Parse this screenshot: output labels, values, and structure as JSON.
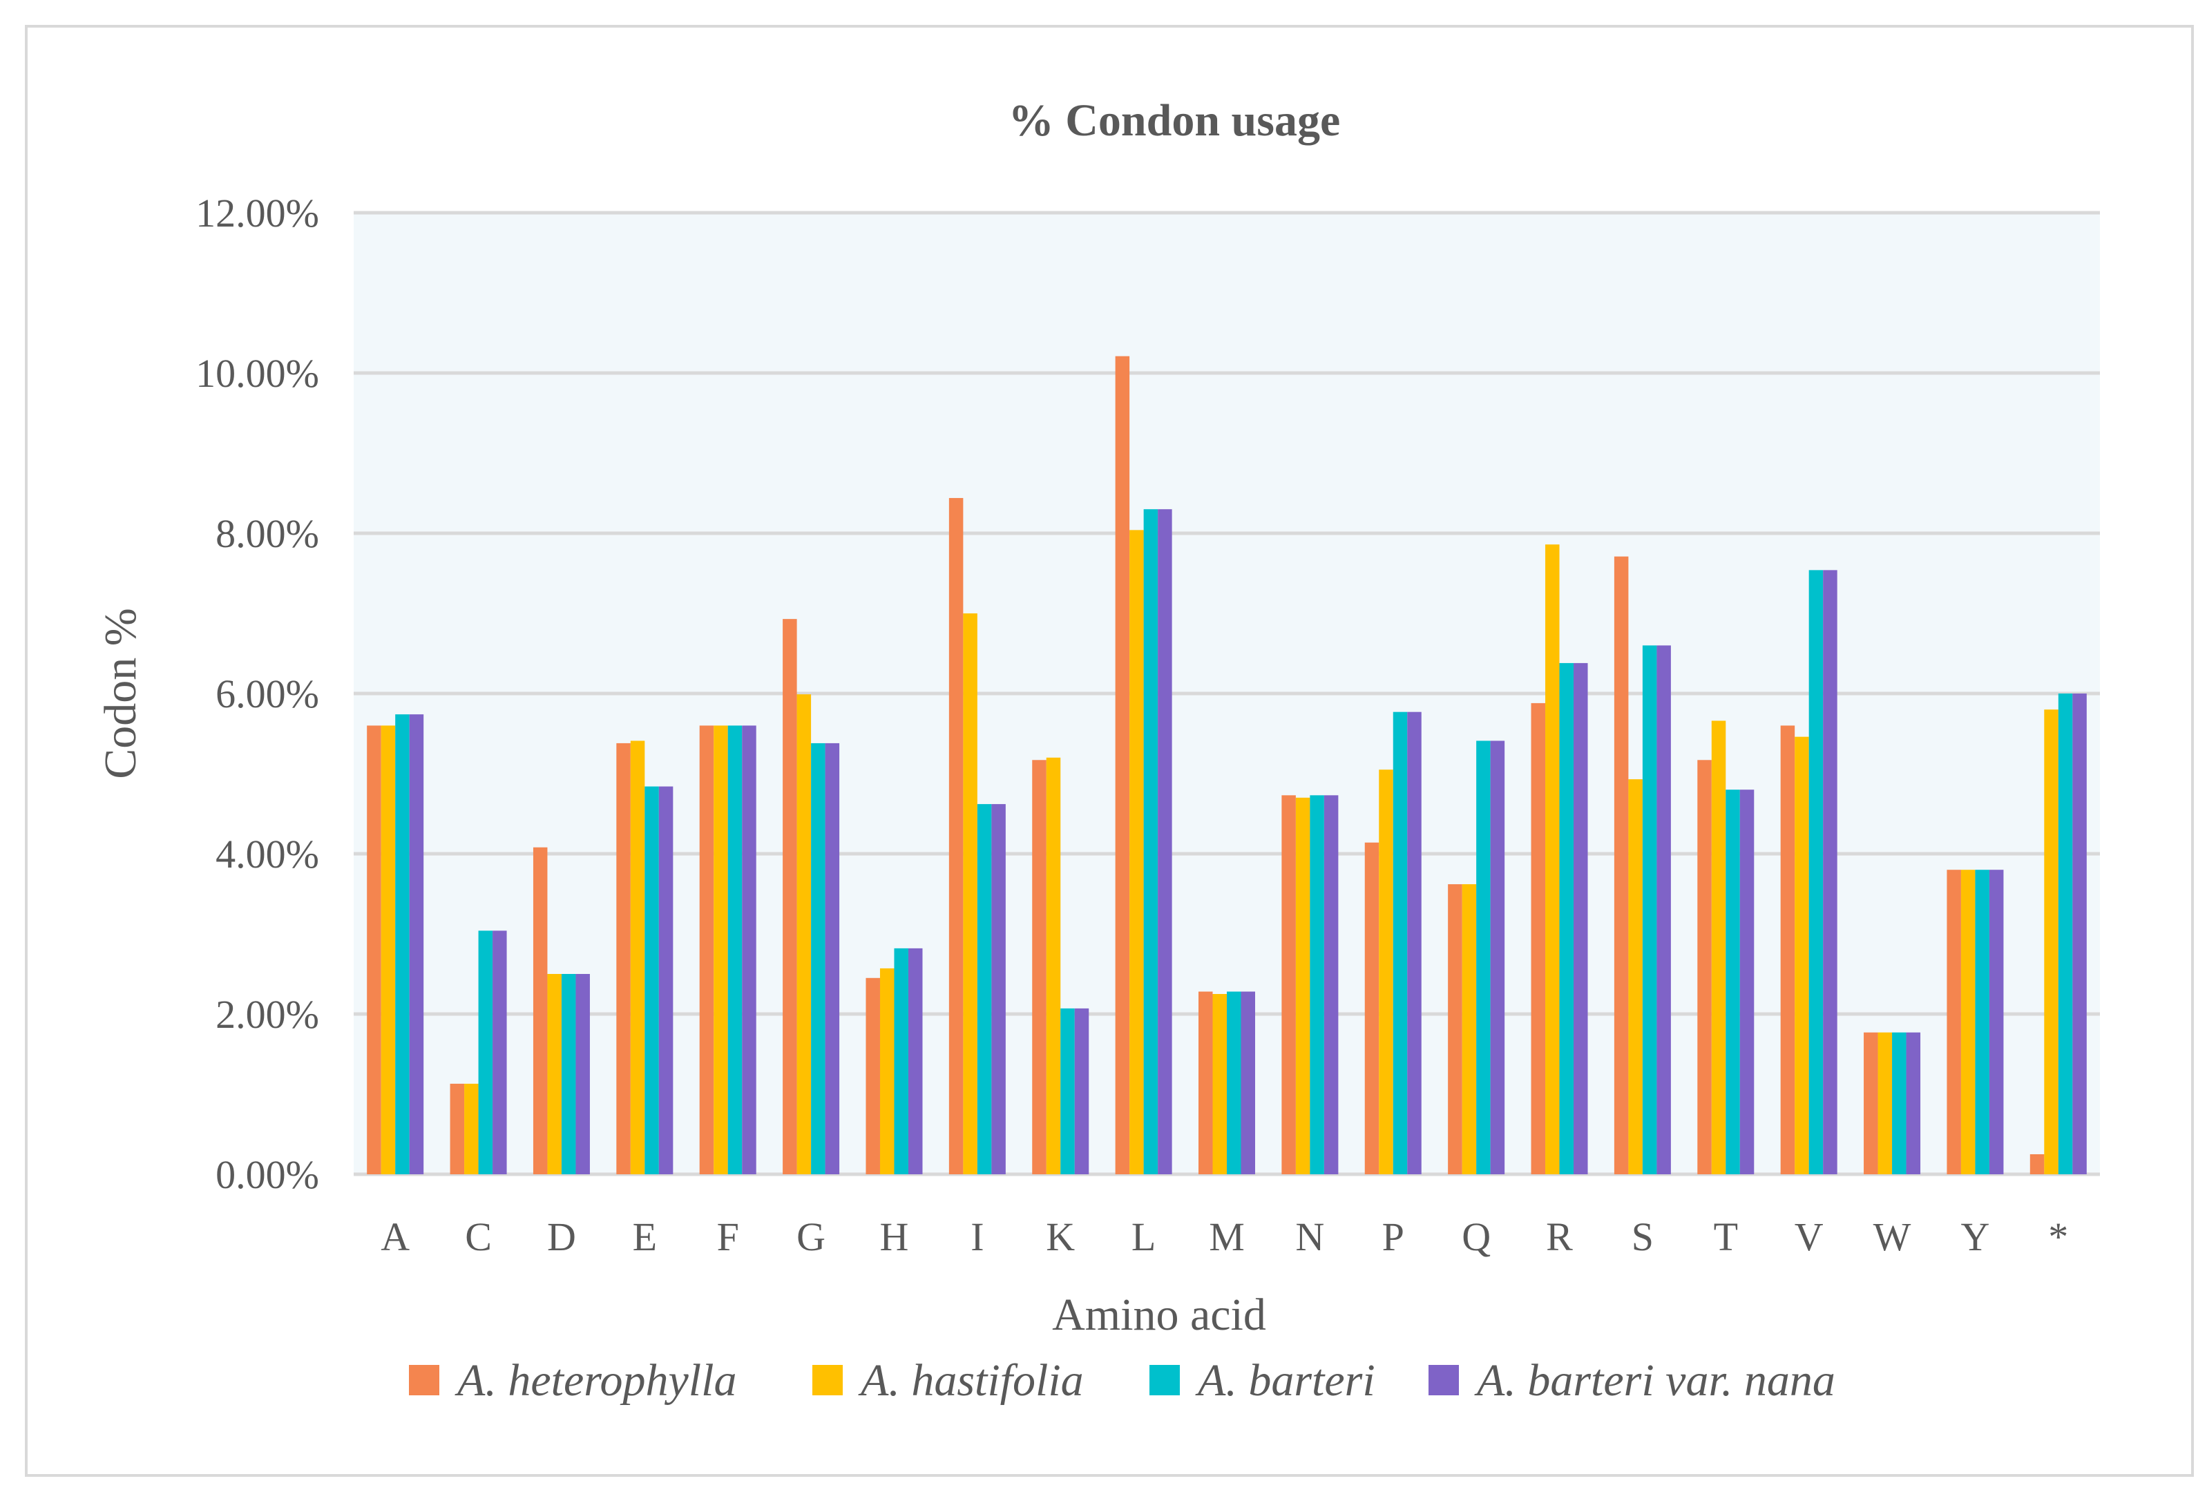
{
  "chart_data": {
    "type": "bar",
    "title": "% Condon usage",
    "xlabel": "Amino acid",
    "ylabel": "Codon %",
    "ylim": [
      0,
      12
    ],
    "y_ticks": [
      "0.00%",
      "2.00%",
      "4.00%",
      "6.00%",
      "8.00%",
      "10.00%",
      "12.00%"
    ],
    "y_tick_values": [
      0,
      2,
      4,
      6,
      8,
      10,
      12
    ],
    "grid": true,
    "legend_position": "bottom",
    "categories": [
      "A",
      "C",
      "D",
      "E",
      "F",
      "G",
      "H",
      "I",
      "K",
      "L",
      "M",
      "N",
      "P",
      "Q",
      "R",
      "S",
      "T",
      "V",
      "W",
      "Y",
      "*"
    ],
    "series": [
      {
        "name": "A. heterophylla",
        "color": "#f4854f",
        "values": [
          5.6,
          1.13,
          4.08,
          5.38,
          5.6,
          6.93,
          2.45,
          8.44,
          5.17,
          10.21,
          2.28,
          4.73,
          4.14,
          3.62,
          5.88,
          7.71,
          5.17,
          5.6,
          1.77,
          3.8,
          0.25
        ]
      },
      {
        "name": "A. hastifolia",
        "color": "#ffc000",
        "values": [
          5.6,
          1.13,
          2.5,
          5.41,
          5.6,
          5.99,
          2.57,
          7.0,
          5.2,
          8.04,
          2.25,
          4.7,
          5.05,
          3.62,
          7.86,
          4.93,
          5.66,
          5.46,
          1.77,
          3.8,
          5.8
        ]
      },
      {
        "name": "A. barteri",
        "color": "#00c0cc",
        "values": [
          5.74,
          3.04,
          2.5,
          4.84,
          5.6,
          5.38,
          2.82,
          4.62,
          2.07,
          8.3,
          2.28,
          4.73,
          5.77,
          5.41,
          6.38,
          6.6,
          4.8,
          7.54,
          1.77,
          3.8,
          6.0
        ]
      },
      {
        "name": "A. barteri var. nana",
        "color": "#7f63c7",
        "values": [
          5.74,
          3.04,
          2.5,
          4.84,
          5.6,
          5.38,
          2.82,
          4.62,
          2.07,
          8.3,
          2.28,
          4.73,
          5.77,
          5.41,
          6.38,
          6.6,
          4.8,
          7.54,
          1.77,
          3.8,
          6.0
        ]
      }
    ]
  },
  "colors": {
    "plot_background": "#f2f8fb",
    "gridline": "#d9d9d9",
    "text": "#595959"
  }
}
